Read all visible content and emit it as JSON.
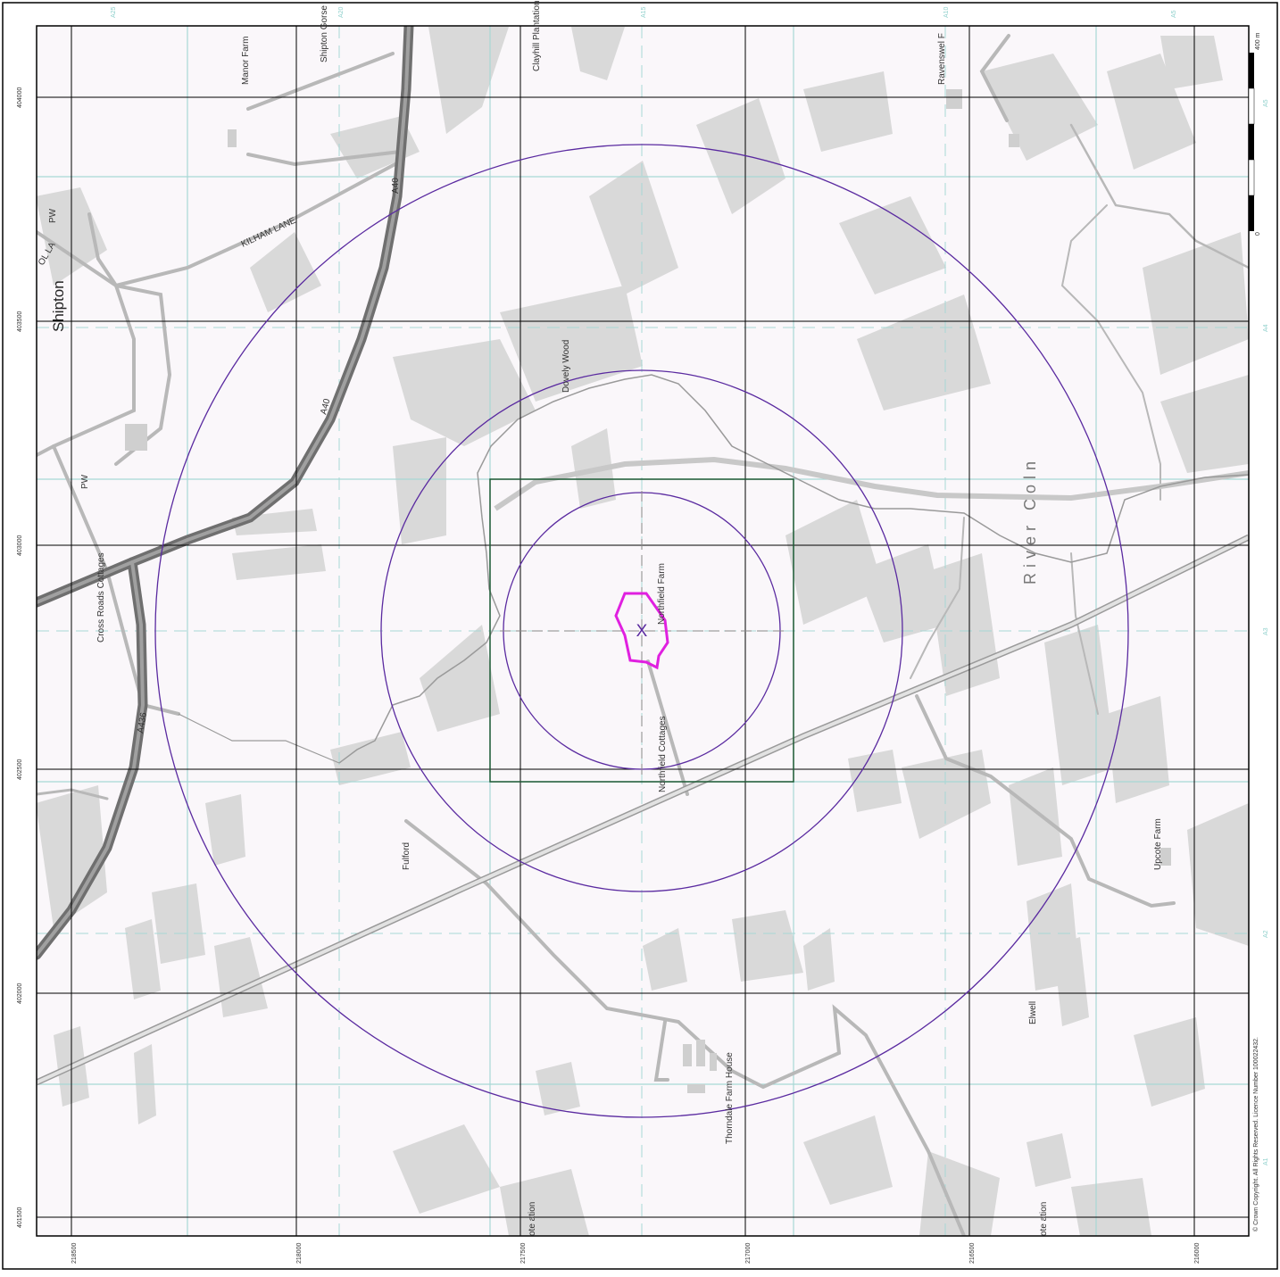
{
  "place_names": {
    "manor_farm": "Manor Farm",
    "shipton_gorse": "Shipton Gorse",
    "clayhill_plantation": "Clayhill Plantation",
    "ravenswell": "Ravenswel F",
    "shipton": "Shipton",
    "pw_1": "PW",
    "pw_2": "PW",
    "school_lane": "OL LA",
    "kilham_lane": "KILHAM LANE",
    "dovely_wood": "Dovely Wood",
    "northfield_farm": "Northfield Farm",
    "cross_roads_cottages": "Cross Roads Cottages",
    "river_coln": "River Coln",
    "northfield_cottages": "Northfield Cottages",
    "fulford": "Fulford",
    "upcote_farm": "Upcote Farm",
    "elwell": "Elwell",
    "thorndale_farm_house": "Thorndale Farm House",
    "pte_plantation": "ote ation",
    "ote_plantation_2": "ote ation"
  },
  "road_labels": {
    "a40_north": "A40",
    "a40_mid": "A40",
    "a436": "A436"
  },
  "northings": {
    "n404000": "404000",
    "n403500": "403500",
    "n403000": "403000",
    "n402500": "402500",
    "n402000": "402000",
    "n401500": "401500"
  },
  "eastings": {
    "e218500": "218500",
    "e218000": "218000",
    "e217500": "217500",
    "e217000": "217000",
    "e216500": "216500",
    "e216000": "216000"
  },
  "sheet_refs_top": [
    "A25",
    "A20",
    "A15",
    "A10",
    "A5"
  ],
  "sheet_refs_right": [
    "A5",
    "A4",
    "A3",
    "A2",
    "A1"
  ],
  "scale_bar": {
    "top_label": "400 m",
    "bottom_label": "0"
  },
  "copyright": "© Crown Copyright. All Rights Reserved. Licence Number 100022432.",
  "site_marker": "X",
  "colors": {
    "background": "#faf7fa",
    "woodland": "#d9d9d9",
    "grid_black": "#000000",
    "grid_teal": "#a8d8d5",
    "buffer_rings": "#5a2aa0",
    "site_boundary": "#e020e0",
    "search_square": "#1e5a34",
    "major_road": "#6f6f6f",
    "minor_road": "#b8b8b8"
  }
}
